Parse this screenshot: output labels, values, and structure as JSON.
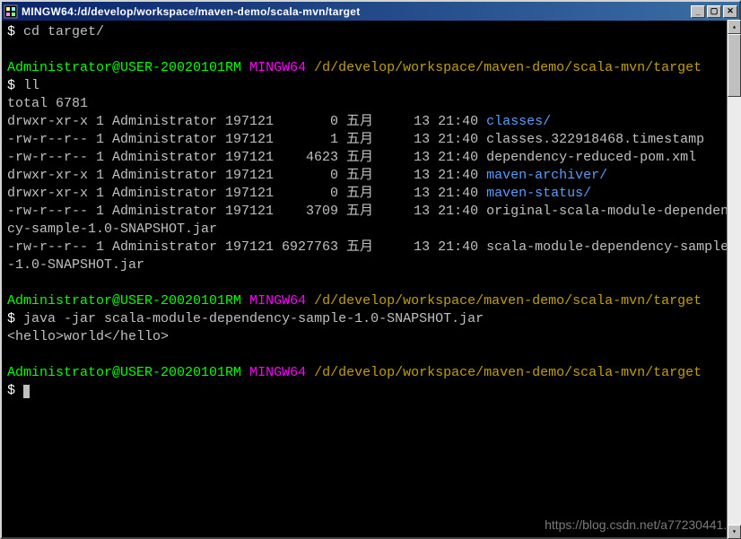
{
  "window": {
    "title": "MINGW64:/d/develop/workspace/maven-demo/scala-mvn/target"
  },
  "colors": {
    "background": "#000000",
    "default_text": "#c0c0c0",
    "prompt_user": "#00ff00",
    "prompt_env": "#ff00ff",
    "prompt_path": "#c0a000",
    "dir_entry": "#5c9cff",
    "command_white": "#ffffff"
  },
  "prompt": {
    "user": "Administrator@USER-20020101RM",
    "env": "MINGW64",
    "path": "/d/develop/workspace/maven-demo/scala-mvn/target",
    "symbol": "$"
  },
  "commands": {
    "cd": "cd target/",
    "ll": "ll",
    "java": "java -jar scala-module-dependency-sample-1.0-SNAPSHOT.jar"
  },
  "ll_header": "total 6781",
  "ll_rows": [
    {
      "perm": "drwxr-xr-x",
      "links": "1",
      "owner": "Administrator",
      "group": "197121",
      "size": "0",
      "month": "五月",
      "day": "13",
      "time": "21:40",
      "name": "classes/",
      "is_dir": true
    },
    {
      "perm": "-rw-r--r--",
      "links": "1",
      "owner": "Administrator",
      "group": "197121",
      "size": "1",
      "month": "五月",
      "day": "13",
      "time": "21:40",
      "name": "classes.322918468.timestamp",
      "is_dir": false
    },
    {
      "perm": "-rw-r--r--",
      "links": "1",
      "owner": "Administrator",
      "group": "197121",
      "size": "4623",
      "month": "五月",
      "day": "13",
      "time": "21:40",
      "name": "dependency-reduced-pom.xml",
      "is_dir": false
    },
    {
      "perm": "drwxr-xr-x",
      "links": "1",
      "owner": "Administrator",
      "group": "197121",
      "size": "0",
      "month": "五月",
      "day": "13",
      "time": "21:40",
      "name": "maven-archiver/",
      "is_dir": true
    },
    {
      "perm": "drwxr-xr-x",
      "links": "1",
      "owner": "Administrator",
      "group": "197121",
      "size": "0",
      "month": "五月",
      "day": "13",
      "time": "21:40",
      "name": "maven-status/",
      "is_dir": true
    },
    {
      "perm": "-rw-r--r--",
      "links": "1",
      "owner": "Administrator",
      "group": "197121",
      "size": "3709",
      "month": "五月",
      "day": "13",
      "time": "21:40",
      "name": "original-scala-module-dependency-sample-1.0-SNAPSHOT.jar",
      "is_dir": false
    },
    {
      "perm": "-rw-r--r--",
      "links": "1",
      "owner": "Administrator",
      "group": "197121",
      "size": "6927763",
      "month": "五月",
      "day": "13",
      "time": "21:40",
      "name": "scala-module-dependency-sample-1.0-SNAPSHOT.jar",
      "is_dir": false
    }
  ],
  "ll_col_widths": {
    "perm": 10,
    "links": 1,
    "owner": 13,
    "group": 6,
    "size": 7,
    "month": 4,
    "day": 4,
    "time": 5
  },
  "output": {
    "java_result": "<hello>world</hello>"
  },
  "watermark": "https://blog.csdn.net/a77230441..."
}
